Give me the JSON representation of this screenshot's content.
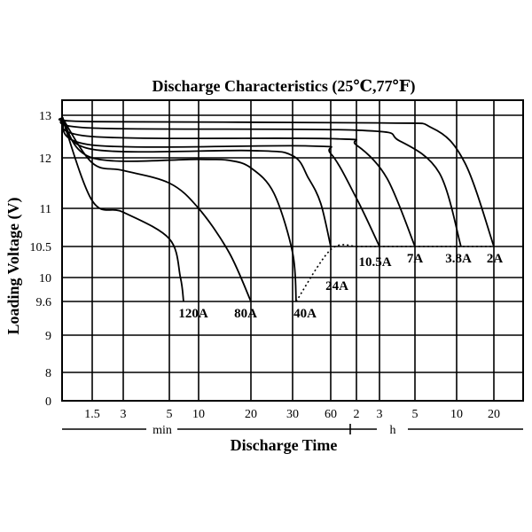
{
  "chart_data": {
    "type": "line",
    "title": "Discharge  Characteristics (25℃,77℉)",
    "xlabel": "Discharge Time",
    "ylabel": "Loading Voltage (V)",
    "x_unit_min": "min",
    "x_unit_h": "h",
    "x_ticks": [
      {
        "label": "1.5",
        "minutes": 1.5
      },
      {
        "label": "3",
        "minutes": 3
      },
      {
        "label": "5",
        "minutes": 5
      },
      {
        "label": "10",
        "minutes": 10
      },
      {
        "label": "20",
        "minutes": 20
      },
      {
        "label": "30",
        "minutes": 30
      },
      {
        "label": "60",
        "minutes": 60
      },
      {
        "label": "2",
        "minutes": 120
      },
      {
        "label": "3",
        "minutes": 180
      },
      {
        "label": "5",
        "minutes": 300
      },
      {
        "label": "10",
        "minutes": 600
      },
      {
        "label": "20",
        "minutes": 1200
      }
    ],
    "y_ticks": [
      {
        "label": "13",
        "value": 13
      },
      {
        "label": "12",
        "value": 12
      },
      {
        "label": "11",
        "value": 11
      },
      {
        "label": "10.5",
        "value": 10.5
      },
      {
        "label": "10",
        "value": 10
      },
      {
        "label": "9.6",
        "value": 9.6
      },
      {
        "label": "9",
        "value": 9
      },
      {
        "label": "8",
        "value": 8
      },
      {
        "label": "0",
        "value": 0
      }
    ],
    "grid": true,
    "series": [
      {
        "name": "120A",
        "points": [
          [
            0.75,
            12.95
          ],
          [
            1.5,
            11.15
          ],
          [
            3,
            10.95
          ],
          [
            5,
            10.6
          ],
          [
            6.5,
            10.0
          ],
          [
            7,
            9.6
          ]
        ]
      },
      {
        "name": "80A",
        "points": [
          [
            0.75,
            12.95
          ],
          [
            1.5,
            11.9
          ],
          [
            3,
            11.75
          ],
          [
            5,
            11.5
          ],
          [
            10,
            11.0
          ],
          [
            15,
            10.4
          ],
          [
            20,
            9.6
          ]
        ]
      },
      {
        "name": "40A",
        "points": [
          [
            0.75,
            12.95
          ],
          [
            1.5,
            12.0
          ],
          [
            10,
            11.97
          ],
          [
            15,
            11.95
          ],
          [
            20,
            11.8
          ],
          [
            25,
            11.3
          ],
          [
            30,
            10.4
          ],
          [
            32,
            9.6
          ]
        ]
      },
      {
        "name": "24A",
        "points": [
          [
            0.75,
            12.95
          ],
          [
            1.5,
            12.2
          ],
          [
            20,
            12.17
          ],
          [
            30,
            12.05
          ],
          [
            40,
            11.6
          ],
          [
            50,
            11.1
          ],
          [
            60,
            10.5
          ]
        ]
      },
      {
        "name": "10.5A",
        "points": [
          [
            0.75,
            12.95
          ],
          [
            1.5,
            12.3
          ],
          [
            40,
            12.28
          ],
          [
            60,
            12.1
          ],
          [
            120,
            11.2
          ],
          [
            180,
            10.5
          ]
        ]
      },
      {
        "name": "7A",
        "points": [
          [
            0.75,
            12.95
          ],
          [
            1.5,
            12.5
          ],
          [
            60,
            12.45
          ],
          [
            120,
            12.3
          ],
          [
            200,
            11.6
          ],
          [
            300,
            10.5
          ]
        ]
      },
      {
        "name": "3.8A",
        "points": [
          [
            0.75,
            12.95
          ],
          [
            1.5,
            12.7
          ],
          [
            120,
            12.65
          ],
          [
            240,
            12.4
          ],
          [
            450,
            11.7
          ],
          [
            650,
            10.5
          ]
        ]
      },
      {
        "name": "2A",
        "points": [
          [
            0.75,
            12.95
          ],
          [
            1.5,
            12.85
          ],
          [
            180,
            12.82
          ],
          [
            400,
            12.7
          ],
          [
            700,
            11.9
          ],
          [
            1200,
            10.5
          ]
        ]
      }
    ],
    "annotations": [
      {
        "type": "dotted-line",
        "points": [
          [
            32,
            9.6
          ],
          [
            60,
            10.45
          ],
          [
            120,
            10.5
          ],
          [
            1200,
            10.5
          ]
        ]
      }
    ],
    "xscale": "log",
    "legend": "curve labels"
  }
}
